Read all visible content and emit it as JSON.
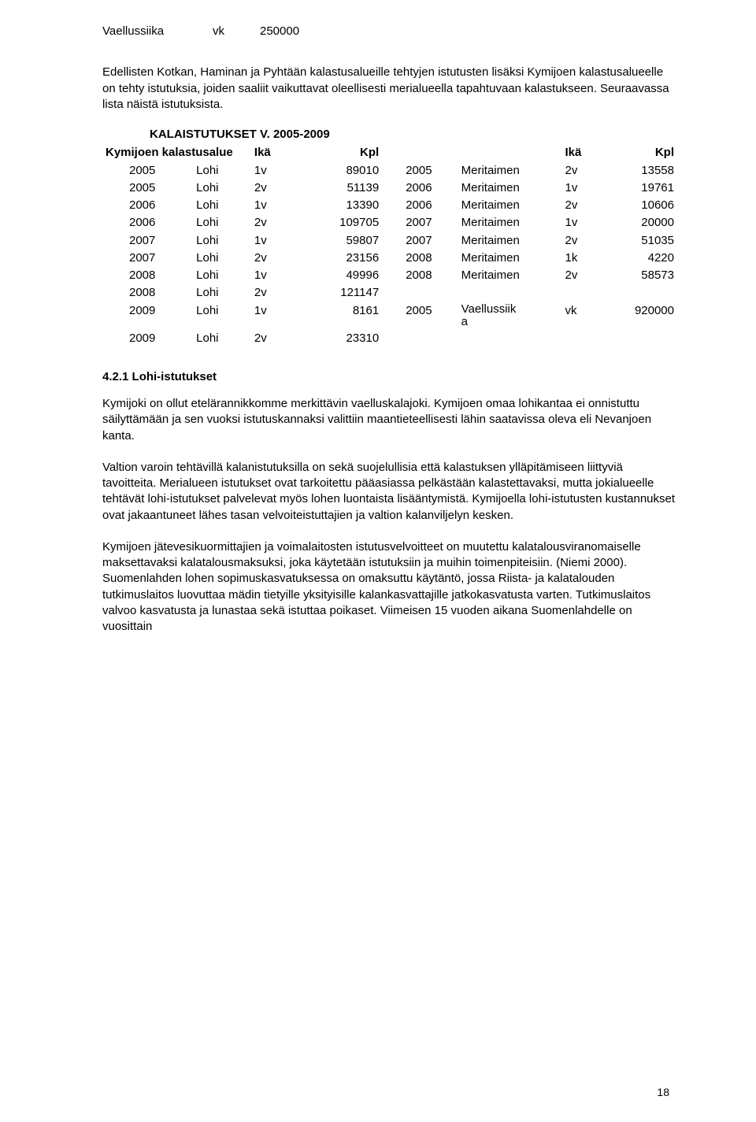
{
  "top_row": {
    "species": "Vaellussiika",
    "age": "vk",
    "count": "250000"
  },
  "intro_para": "Edellisten Kotkan, Haminan ja Pyhtään kalastusalueille tehtyjen istutusten lisäksi Kymijoen kalastusalueelle on tehty istutuksia, joiden saaliit vaikuttavat oleellisesti merialueella tapahtuvaan kalastukseen. Seuraavassa lista näistä istutuksista.",
  "table": {
    "heading": "KALAISTUTUKSET V. 2005-2009",
    "subheading": "Kymijoen kalastusalue",
    "header": {
      "ika": "Ikä",
      "kpl": "Kpl"
    },
    "rows_left": [
      {
        "y": "2005",
        "sp": "Lohi",
        "a": "1v",
        "n": "89010"
      },
      {
        "y": "2005",
        "sp": "Lohi",
        "a": "2v",
        "n": "51139"
      },
      {
        "y": "2006",
        "sp": "Lohi",
        "a": "1v",
        "n": "13390"
      },
      {
        "y": "2006",
        "sp": "Lohi",
        "a": "2v",
        "n": "109705"
      },
      {
        "y": "2007",
        "sp": "Lohi",
        "a": "1v",
        "n": "59807"
      },
      {
        "y": "2007",
        "sp": "Lohi",
        "a": "2v",
        "n": "23156"
      },
      {
        "y": "2008",
        "sp": "Lohi",
        "a": "1v",
        "n": "49996"
      },
      {
        "y": "2008",
        "sp": "Lohi",
        "a": "2v",
        "n": "121147"
      },
      {
        "y": "2009",
        "sp": "Lohi",
        "a": "1v",
        "n": "8161"
      },
      {
        "y": "2009",
        "sp": "Lohi",
        "a": "2v",
        "n": "23310"
      }
    ],
    "rows_right": [
      {
        "y": "2005",
        "sp": "Meritaimen",
        "a": "2v",
        "n": "13558"
      },
      {
        "y": "2006",
        "sp": "Meritaimen",
        "a": "1v",
        "n": "19761"
      },
      {
        "y": "2006",
        "sp": "Meritaimen",
        "a": "2v",
        "n": "10606"
      },
      {
        "y": "2007",
        "sp": "Meritaimen",
        "a": "1v",
        "n": "20000"
      },
      {
        "y": "2007",
        "sp": "Meritaimen",
        "a": "2v",
        "n": "51035"
      },
      {
        "y": "2008",
        "sp": "Meritaimen",
        "a": "1k",
        "n": "4220"
      },
      {
        "y": "2008",
        "sp": "Meritaimen",
        "a": "2v",
        "n": "58573"
      },
      {
        "y": "",
        "sp": "",
        "a": "",
        "n": ""
      },
      {
        "y": "2005",
        "sp": "Vaellussiik\na",
        "a": "vk",
        "n": "920000"
      },
      {
        "y": "",
        "sp": "",
        "a": "",
        "n": ""
      }
    ]
  },
  "section_heading": "4.2.1 Lohi-istutukset",
  "paragraphs": [
    "Kymijoki on ollut etelärannikkomme merkittävin vaelluskalajoki. Kymijoen omaa lohikantaa ei onnistuttu säilyttämään ja sen vuoksi istutuskannaksi valittiin maantieteellisesti lähin saatavissa oleva eli Nevanjoen kanta.",
    "Valtion varoin tehtävillä kalanistutuksilla on sekä suojelullisia että kalastuksen ylläpitämiseen liittyviä tavoitteita. Merialueen istutukset ovat tarkoitettu pääasiassa pelkästään kalastettavaksi, mutta jokialueelle tehtävät lohi-istutukset palvelevat myös lohen luontaista lisääntymistä. Kymijoella lohi-istutusten kustannukset ovat jakaantuneet lähes tasan velvoiteistuttajien ja valtion kalanviljelyn kesken.",
    "Kymijoen jätevesikuormittajien ja voimalaitosten istutusvelvoitteet on muutettu kalatalousviranomaiselle maksettavaksi kalatalousmaksuksi, joka käytetään istutuksiin ja muihin toimenpiteisiin. (Niemi 2000). Suomenlahden lohen sopimuskasvatuksessa on omaksuttu käytäntö, jossa Riista- ja kalatalouden tutkimuslaitos luovuttaa mädin tietyille yksityisille kalankasvattajille jatkokasvatusta varten. Tutkimuslaitos valvoo kasvatusta ja lunastaa sekä istuttaa poikaset. Viimeisen 15 vuoden aikana Suomenlahdelle on vuosittain"
  ],
  "page_number": "18"
}
